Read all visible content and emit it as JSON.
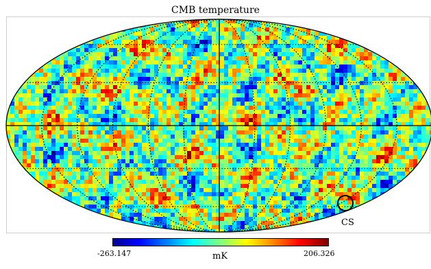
{
  "map": {
    "title": "CMB temperature",
    "projection": "mollweide",
    "marker_label": "CS",
    "colormap": [
      "#00008f",
      "#0000ff",
      "#0080ff",
      "#00ffff",
      "#80ff80",
      "#ffff00",
      "#ff8000",
      "#ff0000",
      "#800000"
    ]
  },
  "colorbar": {
    "min_label": "-263.147",
    "max_label": "206.326",
    "unit": "mK"
  }
}
